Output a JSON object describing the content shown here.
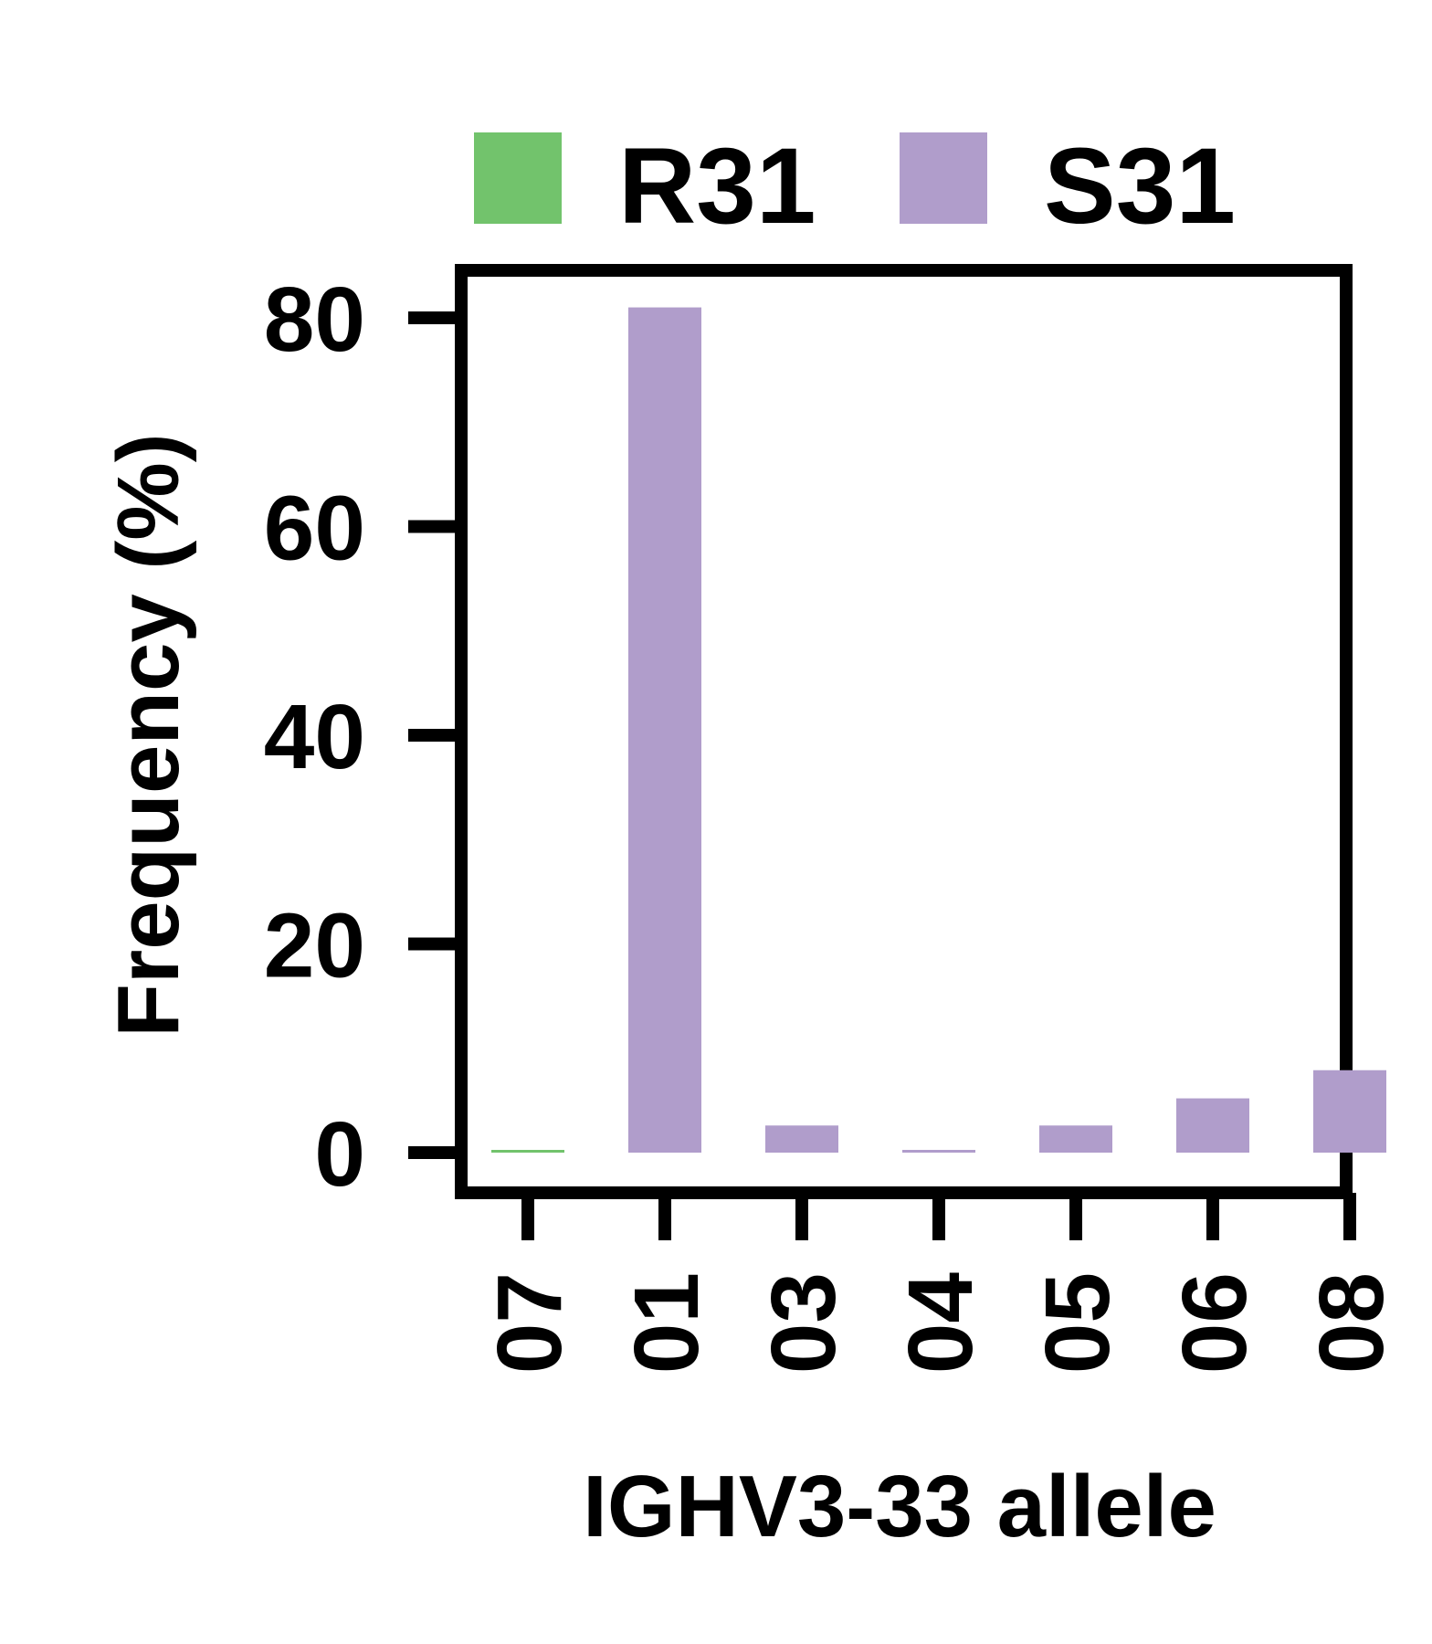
{
  "chart_data": {
    "type": "bar",
    "categories": [
      "07",
      "01",
      "03",
      "04",
      "05",
      "06",
      "08"
    ],
    "series": [
      {
        "name": "R31",
        "color": "#72c36c",
        "values": [
          0.25,
          null,
          null,
          null,
          null,
          null,
          null
        ]
      },
      {
        "name": "S31",
        "color": "#b09dcb",
        "values": [
          null,
          81,
          2.6,
          0.25,
          2.6,
          5.2,
          7.9
        ]
      }
    ],
    "title": "",
    "xlabel": "IGHV3-33 allele",
    "ylabel": "Frequency (%)",
    "ylim": [
      0,
      80
    ],
    "yticks": [
      0,
      20,
      40,
      60,
      80
    ],
    "grid": false,
    "legend_position": "top"
  }
}
